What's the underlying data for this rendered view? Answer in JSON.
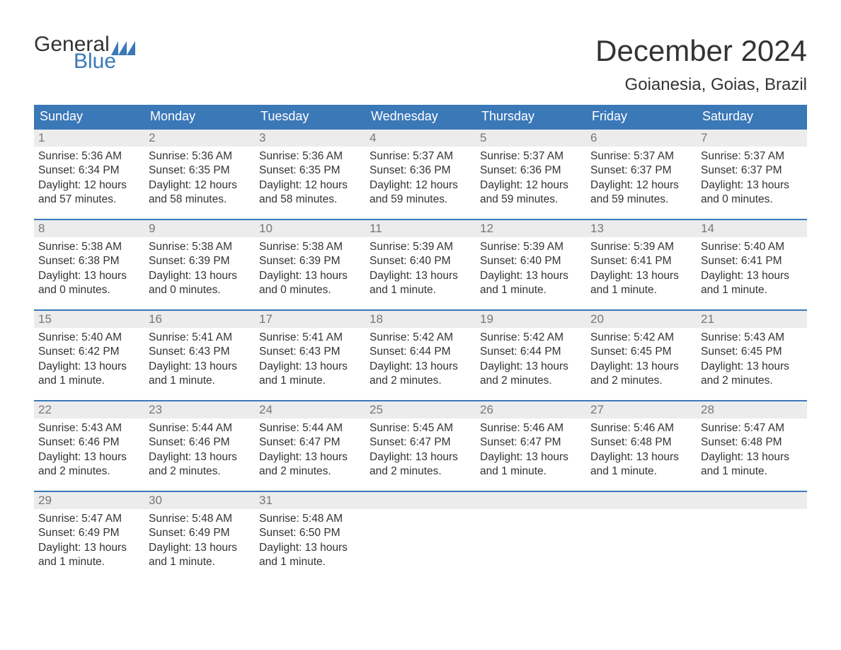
{
  "colors": {
    "header_bg": "#3b78b8",
    "header_text": "#ffffff",
    "daynum_bg": "#ececec",
    "daynum_text": "#777777",
    "text": "#333333",
    "accent": "#3b78b8",
    "page_bg": "#ffffff"
  },
  "typography": {
    "month_title_fontsize": 42,
    "location_fontsize": 24,
    "daynames_fontsize": 18,
    "daynum_fontsize": 17,
    "body_fontsize": 15.5
  },
  "logo": {
    "text_top": "General",
    "text_bottom": "Blue"
  },
  "title": "December 2024",
  "location": "Goianesia, Goias, Brazil",
  "daynames": [
    "Sunday",
    "Monday",
    "Tuesday",
    "Wednesday",
    "Thursday",
    "Friday",
    "Saturday"
  ],
  "weeks": [
    [
      {
        "n": "1",
        "sunrise": "Sunrise: 5:36 AM",
        "sunset": "Sunset: 6:34 PM",
        "dl1": "Daylight: 12 hours",
        "dl2": "and 57 minutes."
      },
      {
        "n": "2",
        "sunrise": "Sunrise: 5:36 AM",
        "sunset": "Sunset: 6:35 PM",
        "dl1": "Daylight: 12 hours",
        "dl2": "and 58 minutes."
      },
      {
        "n": "3",
        "sunrise": "Sunrise: 5:36 AM",
        "sunset": "Sunset: 6:35 PM",
        "dl1": "Daylight: 12 hours",
        "dl2": "and 58 minutes."
      },
      {
        "n": "4",
        "sunrise": "Sunrise: 5:37 AM",
        "sunset": "Sunset: 6:36 PM",
        "dl1": "Daylight: 12 hours",
        "dl2": "and 59 minutes."
      },
      {
        "n": "5",
        "sunrise": "Sunrise: 5:37 AM",
        "sunset": "Sunset: 6:36 PM",
        "dl1": "Daylight: 12 hours",
        "dl2": "and 59 minutes."
      },
      {
        "n": "6",
        "sunrise": "Sunrise: 5:37 AM",
        "sunset": "Sunset: 6:37 PM",
        "dl1": "Daylight: 12 hours",
        "dl2": "and 59 minutes."
      },
      {
        "n": "7",
        "sunrise": "Sunrise: 5:37 AM",
        "sunset": "Sunset: 6:37 PM",
        "dl1": "Daylight: 13 hours",
        "dl2": "and 0 minutes."
      }
    ],
    [
      {
        "n": "8",
        "sunrise": "Sunrise: 5:38 AM",
        "sunset": "Sunset: 6:38 PM",
        "dl1": "Daylight: 13 hours",
        "dl2": "and 0 minutes."
      },
      {
        "n": "9",
        "sunrise": "Sunrise: 5:38 AM",
        "sunset": "Sunset: 6:39 PM",
        "dl1": "Daylight: 13 hours",
        "dl2": "and 0 minutes."
      },
      {
        "n": "10",
        "sunrise": "Sunrise: 5:38 AM",
        "sunset": "Sunset: 6:39 PM",
        "dl1": "Daylight: 13 hours",
        "dl2": "and 0 minutes."
      },
      {
        "n": "11",
        "sunrise": "Sunrise: 5:39 AM",
        "sunset": "Sunset: 6:40 PM",
        "dl1": "Daylight: 13 hours",
        "dl2": "and 1 minute."
      },
      {
        "n": "12",
        "sunrise": "Sunrise: 5:39 AM",
        "sunset": "Sunset: 6:40 PM",
        "dl1": "Daylight: 13 hours",
        "dl2": "and 1 minute."
      },
      {
        "n": "13",
        "sunrise": "Sunrise: 5:39 AM",
        "sunset": "Sunset: 6:41 PM",
        "dl1": "Daylight: 13 hours",
        "dl2": "and 1 minute."
      },
      {
        "n": "14",
        "sunrise": "Sunrise: 5:40 AM",
        "sunset": "Sunset: 6:41 PM",
        "dl1": "Daylight: 13 hours",
        "dl2": "and 1 minute."
      }
    ],
    [
      {
        "n": "15",
        "sunrise": "Sunrise: 5:40 AM",
        "sunset": "Sunset: 6:42 PM",
        "dl1": "Daylight: 13 hours",
        "dl2": "and 1 minute."
      },
      {
        "n": "16",
        "sunrise": "Sunrise: 5:41 AM",
        "sunset": "Sunset: 6:43 PM",
        "dl1": "Daylight: 13 hours",
        "dl2": "and 1 minute."
      },
      {
        "n": "17",
        "sunrise": "Sunrise: 5:41 AM",
        "sunset": "Sunset: 6:43 PM",
        "dl1": "Daylight: 13 hours",
        "dl2": "and 1 minute."
      },
      {
        "n": "18",
        "sunrise": "Sunrise: 5:42 AM",
        "sunset": "Sunset: 6:44 PM",
        "dl1": "Daylight: 13 hours",
        "dl2": "and 2 minutes."
      },
      {
        "n": "19",
        "sunrise": "Sunrise: 5:42 AM",
        "sunset": "Sunset: 6:44 PM",
        "dl1": "Daylight: 13 hours",
        "dl2": "and 2 minutes."
      },
      {
        "n": "20",
        "sunrise": "Sunrise: 5:42 AM",
        "sunset": "Sunset: 6:45 PM",
        "dl1": "Daylight: 13 hours",
        "dl2": "and 2 minutes."
      },
      {
        "n": "21",
        "sunrise": "Sunrise: 5:43 AM",
        "sunset": "Sunset: 6:45 PM",
        "dl1": "Daylight: 13 hours",
        "dl2": "and 2 minutes."
      }
    ],
    [
      {
        "n": "22",
        "sunrise": "Sunrise: 5:43 AM",
        "sunset": "Sunset: 6:46 PM",
        "dl1": "Daylight: 13 hours",
        "dl2": "and 2 minutes."
      },
      {
        "n": "23",
        "sunrise": "Sunrise: 5:44 AM",
        "sunset": "Sunset: 6:46 PM",
        "dl1": "Daylight: 13 hours",
        "dl2": "and 2 minutes."
      },
      {
        "n": "24",
        "sunrise": "Sunrise: 5:44 AM",
        "sunset": "Sunset: 6:47 PM",
        "dl1": "Daylight: 13 hours",
        "dl2": "and 2 minutes."
      },
      {
        "n": "25",
        "sunrise": "Sunrise: 5:45 AM",
        "sunset": "Sunset: 6:47 PM",
        "dl1": "Daylight: 13 hours",
        "dl2": "and 2 minutes."
      },
      {
        "n": "26",
        "sunrise": "Sunrise: 5:46 AM",
        "sunset": "Sunset: 6:47 PM",
        "dl1": "Daylight: 13 hours",
        "dl2": "and 1 minute."
      },
      {
        "n": "27",
        "sunrise": "Sunrise: 5:46 AM",
        "sunset": "Sunset: 6:48 PM",
        "dl1": "Daylight: 13 hours",
        "dl2": "and 1 minute."
      },
      {
        "n": "28",
        "sunrise": "Sunrise: 5:47 AM",
        "sunset": "Sunset: 6:48 PM",
        "dl1": "Daylight: 13 hours",
        "dl2": "and 1 minute."
      }
    ],
    [
      {
        "n": "29",
        "sunrise": "Sunrise: 5:47 AM",
        "sunset": "Sunset: 6:49 PM",
        "dl1": "Daylight: 13 hours",
        "dl2": "and 1 minute."
      },
      {
        "n": "30",
        "sunrise": "Sunrise: 5:48 AM",
        "sunset": "Sunset: 6:49 PM",
        "dl1": "Daylight: 13 hours",
        "dl2": "and 1 minute."
      },
      {
        "n": "31",
        "sunrise": "Sunrise: 5:48 AM",
        "sunset": "Sunset: 6:50 PM",
        "dl1": "Daylight: 13 hours",
        "dl2": "and 1 minute."
      },
      null,
      null,
      null,
      null
    ]
  ]
}
